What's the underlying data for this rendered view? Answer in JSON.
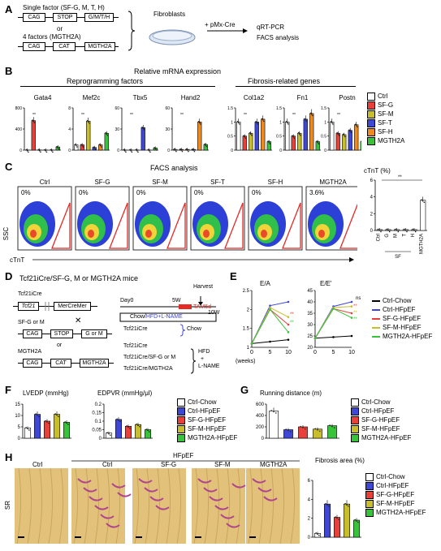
{
  "colors": {
    "ctrl": "#ffffff",
    "sfg": "#e8413b",
    "sfm": "#c8bd2a",
    "sft": "#3f47d6",
    "sfh": "#f08a1e",
    "mgth2a": "#38c33a",
    "chow": "#000000",
    "hfpef": "#3f47d6",
    "hfpef_sfg": "#e8413b",
    "hfpef_sfm": "#c8bd2a",
    "hfpef_mgth2a": "#38c33a"
  },
  "panel_labels": {
    "a": "A",
    "b": "B",
    "c": "C",
    "d": "D",
    "e": "E",
    "f": "F",
    "g": "G",
    "h": "H"
  },
  "panel_a": {
    "single_label": "Single factor (SF-G, M, T, H)",
    "or": "or",
    "four_label": "4 factors (MGTH2A)",
    "cag": "CAG",
    "stop": "STOP",
    "gmth": "G/M/T/H",
    "cat": "CAT",
    "mgth2a": "MGTH2A",
    "fibroblasts": "Fibroblasts",
    "pmx": "+ pMx-Cre",
    "qrt": "qRT-PCR",
    "facs": "FACS analysis"
  },
  "panel_b": {
    "title": "Relative mRNA expression",
    "group1": "Reprogramming factors",
    "group2": "Fibrosis-related genes",
    "legend": [
      "Ctrl",
      "SF-G",
      "SF-M",
      "SF-T",
      "SF-H",
      "MGTH2A"
    ]
  },
  "panel_c": {
    "title": "FACS analysis",
    "plots": [
      {
        "name": "Ctrl",
        "pct": "0%"
      },
      {
        "name": "SF-G",
        "pct": "0%"
      },
      {
        "name": "SF-M",
        "pct": "0%"
      },
      {
        "name": "SF-T",
        "pct": "0%"
      },
      {
        "name": "SF-H",
        "pct": "0%"
      },
      {
        "name": "MGTH2A",
        "pct": "3.6%"
      }
    ],
    "yaxis": "SSC",
    "xaxis": "cTnT",
    "bar_title": "cTnT (%)",
    "sig": "**",
    "sf_label": "SF"
  },
  "panel_d": {
    "title": "Tcf21iCre/SF-G, M or MGTH2A mice",
    "tcf21_icre": "Tcf21iCre",
    "tcf21": "Tcf21",
    "mercremer": "MerCreMer",
    "sfgm": "SF-G or M",
    "x": "✕",
    "cag": "CAG",
    "stop": "STOP",
    "gorm": "G or M",
    "or": "or",
    "mgth2a": "MGTH2A",
    "cat": "CAT",
    "harvest": "Harvest",
    "day0": "Day0",
    "w5": "5W",
    "tam": "TAM5d",
    "w10": "10W",
    "regimen_chow": "Chow/",
    "regimen_hfd": "HFD+L-NAME",
    "g1": "Tcf21iCre",
    "chow": "Chow",
    "g2": "Tcf21iCre",
    "g3": "Tcf21iCre/SF-G or M",
    "g4": "Tcf21iCre/MGTH2A",
    "hfd": "HFD",
    "plus": "+",
    "lname": "L-NAME"
  },
  "panel_e": {
    "title1": "E/A",
    "title2": "E/E'",
    "xlabel": "(weeks)",
    "ns": "ns",
    "legend": [
      "Ctrl-Chow",
      "Ctrl-HFpEF",
      "SF-G-HFpEF",
      "SF-M-HFpEF",
      "MGTH2A-HFpEF"
    ]
  },
  "panel_f": {
    "title1": "LVEDP (mmHg)",
    "title2": "EDPVR (mmHg/μl)"
  },
  "panel_g": {
    "title": "Running distance (m)"
  },
  "groups5": [
    "Ctrl-Chow",
    "Ctrl-HFpEF",
    "SF-G-HFpEF",
    "SF-M-HFpEF",
    "MGTH2A-HFpEF"
  ],
  "panel_h": {
    "hfpef": "HFpEF",
    "ctrl1": "Ctrl",
    "ctrl2": "Ctrl",
    "sfg": "SF-G",
    "sfm": "SF-M",
    "mgth2a": "MGTH2A",
    "sr": "SR",
    "bar_title": "Fibrosis area (%)"
  },
  "chart_data": [
    {
      "type": "bar",
      "title": "Gata4",
      "categories": [
        "Ctrl",
        "SF-G",
        "SF-M",
        "SF-T",
        "SF-H",
        "MGTH2A"
      ],
      "values": [
        1,
        560,
        3,
        2,
        2,
        60
      ],
      "ylim": [
        0,
        800
      ],
      "ticks": [
        0,
        400,
        800
      ]
    },
    {
      "type": "bar",
      "title": "Mef2c",
      "categories": [
        "Ctrl",
        "SF-G",
        "SF-M",
        "SF-T",
        "SF-H",
        "MGTH2A"
      ],
      "values": [
        1,
        1,
        5.5,
        0.5,
        1,
        3.2
      ],
      "ylim": [
        0,
        8
      ],
      "ticks": [
        0,
        4,
        8
      ]
    },
    {
      "type": "bar",
      "title": "Tbx5",
      "categories": [
        "Ctrl",
        "SF-G",
        "SF-M",
        "SF-T",
        "SF-H",
        "MGTH2A"
      ],
      "values": [
        0.2,
        0.2,
        0.2,
        32,
        0.2,
        3
      ],
      "ylim": [
        0,
        60
      ],
      "ticks": [
        0,
        30,
        60
      ]
    },
    {
      "type": "bar",
      "title": "Hand2",
      "categories": [
        "Ctrl",
        "SF-G",
        "SF-M",
        "SF-T",
        "SF-H",
        "MGTH2A"
      ],
      "values": [
        1,
        1,
        1,
        1,
        40,
        8
      ],
      "ylim": [
        0,
        60
      ],
      "ticks": [
        0,
        30,
        60
      ]
    },
    {
      "type": "bar",
      "title": "Col1a2",
      "categories": [
        "Ctrl",
        "SF-G",
        "SF-M",
        "SF-T",
        "SF-H",
        "MGTH2A"
      ],
      "values": [
        1,
        0.5,
        0.6,
        1,
        1.1,
        0.3
      ],
      "ylim": [
        0,
        1.5
      ],
      "ticks": [
        0,
        0.5,
        1,
        1.5
      ]
    },
    {
      "type": "bar",
      "title": "Fn1",
      "categories": [
        "Ctrl",
        "SF-G",
        "SF-M",
        "SF-T",
        "SF-H",
        "MGTH2A"
      ],
      "values": [
        1,
        0.5,
        0.6,
        1.1,
        1.3,
        0.3
      ],
      "ylim": [
        0,
        1.5
      ],
      "ticks": [
        0,
        0.5,
        1,
        1.5
      ]
    },
    {
      "type": "bar",
      "title": "Postn",
      "categories": [
        "Ctrl",
        "SF-G",
        "SF-M",
        "SF-T",
        "SF-H",
        "MGTH2A"
      ],
      "values": [
        1,
        0.6,
        0.55,
        0.7,
        0.9,
        0.3
      ],
      "ylim": [
        0,
        1.5
      ],
      "ticks": [
        0,
        0.5,
        1,
        1.5
      ]
    },
    {
      "type": "bar",
      "title": "cTnT (%)",
      "categories": [
        "Ctrl",
        "G",
        "M",
        "T",
        "H",
        "MGTH2A"
      ],
      "values": [
        0.1,
        0.1,
        0.1,
        0.1,
        0.1,
        3.6
      ],
      "ylim": [
        0,
        6
      ],
      "ticks": [
        0,
        2,
        4,
        6
      ]
    },
    {
      "type": "line",
      "title": "E/A",
      "x": [
        0,
        5,
        10
      ],
      "series": [
        {
          "name": "Ctrl-Chow",
          "values": [
            1.1,
            1.15,
            1.2
          ]
        },
        {
          "name": "Ctrl-HFpEF",
          "values": [
            1.1,
            2.1,
            2.2
          ]
        },
        {
          "name": "SF-G-HFpEF",
          "values": [
            1.1,
            2.0,
            1.6
          ]
        },
        {
          "name": "SF-M-HFpEF",
          "values": [
            1.1,
            2.05,
            1.8
          ]
        },
        {
          "name": "MGTH2A-HFpEF",
          "values": [
            1.1,
            2.0,
            1.4
          ]
        }
      ],
      "ylim": [
        1,
        2.5
      ],
      "ticks": [
        1,
        1.5,
        2,
        2.5
      ],
      "xticks": [
        0,
        5,
        10
      ]
    },
    {
      "type": "line",
      "title": "E/E'",
      "x": [
        0,
        5,
        10
      ],
      "series": [
        {
          "name": "Ctrl-Chow",
          "values": [
            24,
            24.5,
            25
          ]
        },
        {
          "name": "Ctrl-HFpEF",
          "values": [
            24,
            38,
            40
          ]
        },
        {
          "name": "SF-G-HFpEF",
          "values": [
            24,
            37,
            35
          ]
        },
        {
          "name": "SF-M-HFpEF",
          "values": [
            24,
            37.5,
            38
          ]
        },
        {
          "name": "MGTH2A-HFpEF",
          "values": [
            24,
            37,
            33
          ]
        }
      ],
      "ylim": [
        20,
        45
      ],
      "ticks": [
        20,
        25,
        30,
        35,
        40,
        45
      ],
      "xticks": [
        0,
        5,
        10
      ]
    },
    {
      "type": "bar",
      "title": "LVEDP (mmHg)",
      "categories": [
        "Ctrl-Chow",
        "Ctrl-HFpEF",
        "SF-G-HFpEF",
        "SF-M-HFpEF",
        "MGTH2A-HFpEF"
      ],
      "values": [
        4.5,
        10.5,
        7.5,
        10.5,
        7
      ],
      "ylim": [
        0,
        15
      ],
      "ticks": [
        0,
        5,
        10,
        15
      ]
    },
    {
      "type": "bar",
      "title": "EDPVR (mmHg/μl)",
      "categories": [
        "Ctrl-Chow",
        "Ctrl-HFpEF",
        "SF-G-HFpEF",
        "SF-M-HFpEF",
        "MGTH2A-HFpEF"
      ],
      "values": [
        0.03,
        0.11,
        0.07,
        0.08,
        0.05
      ],
      "ylim": [
        0,
        0.2
      ],
      "ticks": [
        0,
        0.05,
        0.1,
        0.15,
        0.2
      ]
    },
    {
      "type": "bar",
      "title": "Running distance (m)",
      "categories": [
        "Ctrl-Chow",
        "Ctrl-HFpEF",
        "SF-G-HFpEF",
        "SF-M-HFpEF",
        "MGTH2A-HFpEF"
      ],
      "values": [
        480,
        150,
        200,
        160,
        220
      ],
      "ylim": [
        0,
        600
      ],
      "ticks": [
        0,
        200,
        400,
        600
      ]
    },
    {
      "type": "bar",
      "title": "Fibrosis area (%)",
      "categories": [
        "Ctrl-Chow",
        "Ctrl-HFpEF",
        "SF-G-HFpEF",
        "SF-M-HFpEF",
        "MGTH2A-HFpEF"
      ],
      "values": [
        0.4,
        3.5,
        2.1,
        3.5,
        1.8
      ],
      "ylim": [
        0,
        6
      ],
      "ticks": [
        0,
        2,
        4,
        6
      ]
    }
  ]
}
